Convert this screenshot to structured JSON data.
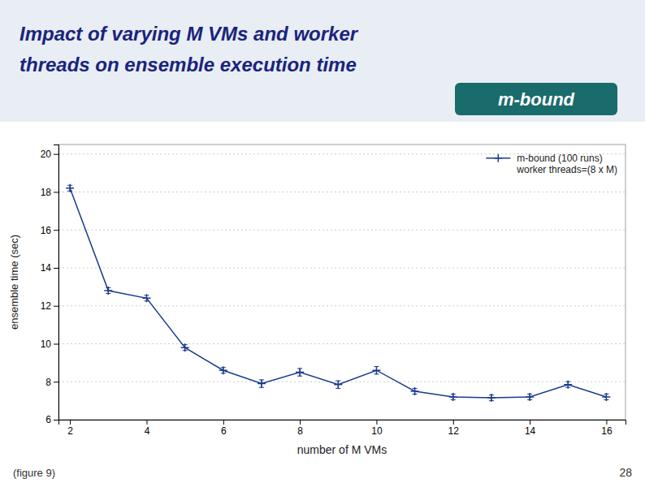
{
  "chart_data": {
    "type": "line",
    "title": [
      "Impact of varying M VMs and worker",
      "threads on ensemble execution time"
    ],
    "annotations": [
      "m-bound",
      "(figure 9)",
      "28"
    ],
    "x": [
      2,
      3,
      4,
      5,
      6,
      7,
      8,
      9,
      10,
      11,
      12,
      13,
      14,
      15,
      16
    ],
    "series": [
      {
        "name": "m-bound (100 runs)\nworker threads=(8 x M)",
        "color": "#1a3a8c",
        "marker": "+",
        "values": [
          18.2,
          12.8,
          12.4,
          9.8,
          8.6,
          7.9,
          8.5,
          7.85,
          8.6,
          7.5,
          7.2,
          7.15,
          7.2,
          7.85,
          7.2
        ],
        "errors": [
          0.15,
          0.15,
          0.15,
          0.15,
          0.15,
          0.2,
          0.2,
          0.2,
          0.2,
          0.15,
          0.15,
          0.15,
          0.15,
          0.15,
          0.15
        ]
      }
    ],
    "x_label": "number of M VMs",
    "y_label": "ensemble time (sec)",
    "xlim": [
      1.7,
      16.5
    ],
    "xticks": [
      2,
      4,
      6,
      8,
      10,
      12,
      14,
      16
    ],
    "ylim": [
      6,
      20.5
    ],
    "yticks": [
      6,
      8,
      10,
      12,
      14,
      16,
      18,
      20
    ],
    "grid": true,
    "legend": "upper right"
  }
}
